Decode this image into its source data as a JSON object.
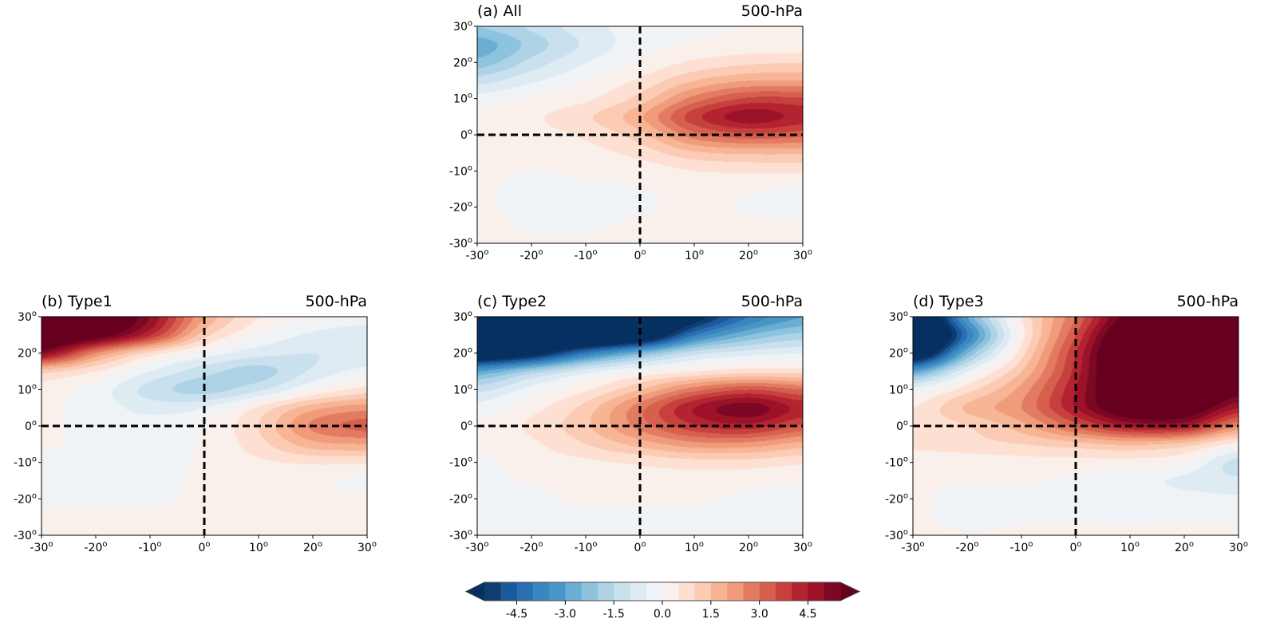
{
  "chart_data": [
    {
      "type": "heatmap",
      "title": "(a) All",
      "subtitle": "500-hPa",
      "x": [
        -30,
        -20,
        -10,
        0,
        10,
        20,
        30
      ],
      "y": [
        30,
        25,
        20,
        15,
        10,
        5,
        0,
        -5,
        -10,
        -15,
        -20,
        -25,
        -30
      ],
      "xlim": [
        -30,
        30
      ],
      "ylim": [
        -30,
        30
      ],
      "values": [
        [
          -2.0,
          -1.4,
          -0.7,
          -0.3,
          -0.1,
          0.0,
          0.0
        ],
        [
          -2.8,
          -1.8,
          -0.9,
          -0.2,
          0.1,
          0.2,
          0.2
        ],
        [
          -2.3,
          -1.3,
          -0.5,
          0.1,
          0.6,
          0.9,
          1.0
        ],
        [
          -1.2,
          -0.6,
          0.0,
          0.6,
          1.5,
          2.0,
          2.0
        ],
        [
          -0.3,
          0.1,
          0.4,
          1.2,
          2.7,
          3.6,
          3.6
        ],
        [
          0.1,
          0.4,
          0.9,
          1.9,
          3.8,
          4.8,
          4.3
        ],
        [
          0.1,
          0.3,
          0.6,
          1.3,
          2.8,
          3.4,
          3.2
        ],
        [
          0.1,
          0.1,
          0.3,
          0.7,
          1.4,
          1.6,
          1.6
        ],
        [
          0.1,
          0.0,
          0.1,
          0.2,
          0.5,
          0.6,
          0.6
        ],
        [
          0.05,
          -0.1,
          -0.1,
          0.0,
          0.1,
          0.1,
          -0.1
        ],
        [
          0.05,
          -0.1,
          -0.1,
          -0.05,
          0.1,
          -0.05,
          -0.2
        ],
        [
          0.1,
          -0.05,
          -0.1,
          0.1,
          0.1,
          0.1,
          0.1
        ],
        [
          0.1,
          0.05,
          0.1,
          0.1,
          0.1,
          0.1,
          0.1
        ]
      ]
    },
    {
      "type": "heatmap",
      "title": "(b) Type1",
      "subtitle": "500-hPa",
      "x": [
        -30,
        -20,
        -10,
        0,
        10,
        20,
        30
      ],
      "y": [
        30,
        25,
        20,
        15,
        10,
        5,
        0,
        -5,
        -10,
        -15,
        -20,
        -25,
        -30
      ],
      "xlim": [
        -30,
        30
      ],
      "ylim": [
        -30,
        30
      ],
      "values": [
        [
          7,
          7,
          5,
          2,
          0.5,
          0,
          -0.3
        ],
        [
          7,
          6,
          4,
          1.2,
          0,
          -0.6,
          -0.8
        ],
        [
          5,
          2.5,
          0.8,
          -0.2,
          -0.8,
          -1.0,
          -0.8
        ],
        [
          1.2,
          0.5,
          -0.5,
          -1.3,
          -1.7,
          -0.9,
          -0.3
        ],
        [
          0.3,
          -0.2,
          -1.2,
          -1.7,
          -1.1,
          0,
          0.7
        ],
        [
          0.1,
          -0.2,
          -0.7,
          -0.5,
          0.6,
          1.8,
          2.3
        ],
        [
          0.05,
          -0.1,
          -0.2,
          0,
          1.0,
          2.6,
          3.2
        ],
        [
          0.05,
          -0.1,
          -0.1,
          0.05,
          0.8,
          1.8,
          2.0
        ],
        [
          -0.1,
          -0.1,
          -0.1,
          0.05,
          0.4,
          0.6,
          0.6
        ],
        [
          -0.1,
          -0.1,
          -0.1,
          0.05,
          0.1,
          0.1,
          -0.1
        ],
        [
          -0.1,
          -0.1,
          -0.1,
          0.1,
          0.1,
          0.1,
          0.1
        ],
        [
          0.1,
          0.1,
          0.1,
          0.1,
          0.1,
          0.1,
          0.1
        ],
        [
          0.1,
          0.1,
          0.1,
          0.1,
          0.1,
          0.1,
          0.1
        ]
      ]
    },
    {
      "type": "heatmap",
      "title": "(c) Type2",
      "subtitle": "500-hPa",
      "x": [
        -30,
        -20,
        -10,
        0,
        10,
        20,
        30
      ],
      "y": [
        30,
        25,
        20,
        15,
        10,
        5,
        0,
        -5,
        -10,
        -15,
        -20,
        -25,
        -30
      ],
      "xlim": [
        -30,
        30
      ],
      "ylim": [
        -30,
        30
      ],
      "values": [
        [
          -9,
          -9,
          -9,
          -8,
          -6,
          -4,
          -3
        ],
        [
          -9,
          -8,
          -8,
          -7,
          -4,
          -2.5,
          -1.8
        ],
        [
          -7,
          -6,
          -4,
          -2.5,
          -1.2,
          -0.7,
          -0.5
        ],
        [
          -3,
          -1.8,
          -0.7,
          0,
          0.5,
          0.8,
          0.8
        ],
        [
          -1.2,
          -0.3,
          0.4,
          1.5,
          2.8,
          3.5,
          3.0
        ],
        [
          -0.3,
          0.3,
          1.2,
          2.8,
          4.5,
          5.3,
          4.3
        ],
        [
          0.1,
          0.6,
          1.4,
          2.7,
          3.9,
          4.3,
          3.4
        ],
        [
          0.1,
          0.4,
          1.0,
          1.7,
          2.3,
          2.3,
          1.8
        ],
        [
          -0.1,
          0.2,
          0.4,
          0.6,
          0.8,
          0.8,
          0.6
        ],
        [
          -0.1,
          0.05,
          0.2,
          0.3,
          0.3,
          0.2,
          0.05
        ],
        [
          -0.1,
          -0.1,
          0.1,
          0.1,
          0.1,
          -0.1,
          -0.2
        ],
        [
          -0.1,
          -0.1,
          -0.1,
          -0.1,
          -0.1,
          -0.1,
          -0.1
        ],
        [
          -0.1,
          -0.1,
          -0.1,
          -0.1,
          -0.1,
          -0.1,
          -0.1
        ]
      ]
    },
    {
      "type": "heatmap",
      "title": "(d) Type3",
      "subtitle": "500-hPa",
      "x": [
        -30,
        -20,
        -10,
        0,
        10,
        20,
        30
      ],
      "y": [
        30,
        25,
        20,
        15,
        10,
        5,
        0,
        -5,
        -10,
        -15,
        -20,
        -25,
        -30
      ],
      "xlim": [
        -30,
        30
      ],
      "ylim": [
        -30,
        30
      ],
      "values": [
        [
          -8,
          -3,
          0.5,
          3,
          6,
          7,
          7
        ],
        [
          -9,
          -4,
          0.3,
          3.5,
          7,
          8,
          8
        ],
        [
          -7,
          -2.5,
          0.8,
          4,
          7.5,
          8.5,
          8
        ],
        [
          -3,
          -0.5,
          1.5,
          4.2,
          7.5,
          8.5,
          7.5
        ],
        [
          -0.3,
          0.8,
          2.2,
          4.5,
          7,
          7.5,
          6
        ],
        [
          0.5,
          1.6,
          2.5,
          4.5,
          6.5,
          6.5,
          4.5
        ],
        [
          0.6,
          1.0,
          1.8,
          3.2,
          4.5,
          4.5,
          2.5
        ],
        [
          0.6,
          0.8,
          1.0,
          1.3,
          1.6,
          1.3,
          0.3
        ],
        [
          0.2,
          0.2,
          0.3,
          0.3,
          0.3,
          0.05,
          -1.2
        ],
        [
          0.1,
          0.05,
          0.05,
          -0.1,
          -0.3,
          -0.6,
          -0.9
        ],
        [
          0.1,
          -0.2,
          -0.2,
          -0.3,
          -0.1,
          -0.3,
          -0.4
        ],
        [
          0.1,
          -0.2,
          -0.1,
          -0.1,
          -0.1,
          -0.1,
          -0.1
        ],
        [
          0.1,
          0.05,
          0.1,
          0.1,
          0.1,
          0.1,
          0.1
        ]
      ]
    }
  ],
  "axes": {
    "x_ticks": [
      "-30",
      "-20",
      "-10",
      "0",
      "10",
      "20",
      "30"
    ],
    "y_ticks": [
      "30",
      "20",
      "10",
      "0",
      "-10",
      "-20",
      "-30"
    ],
    "degree_marker": "o",
    "reference_lines": "dashed black at 0° longitude and 0° latitude"
  },
  "colorbar": {
    "colormap": "RdBu_r",
    "range": [
      -5.5,
      5.5
    ],
    "step": 0.5,
    "extend": "both",
    "ticks": [
      "-4.5",
      "-3.0",
      "-1.5",
      "0.0",
      "1.5",
      "3.0",
      "4.5"
    ],
    "colors": [
      "#0f3d71",
      "#1b5a9a",
      "#2a6fb3",
      "#3a86be",
      "#4896c8",
      "#6aaed3",
      "#8ec3de",
      "#aed3e7",
      "#c9e0ee",
      "#deebf3",
      "#eff3f6",
      "#f9efeb",
      "#fde0d2",
      "#fbcbb4",
      "#f7b596",
      "#f09c7b",
      "#e27b62",
      "#d6604d",
      "#c6413e",
      "#b42330",
      "#9c1228",
      "#7c0825"
    ],
    "under_color": "#053061",
    "over_color": "#67001f"
  }
}
